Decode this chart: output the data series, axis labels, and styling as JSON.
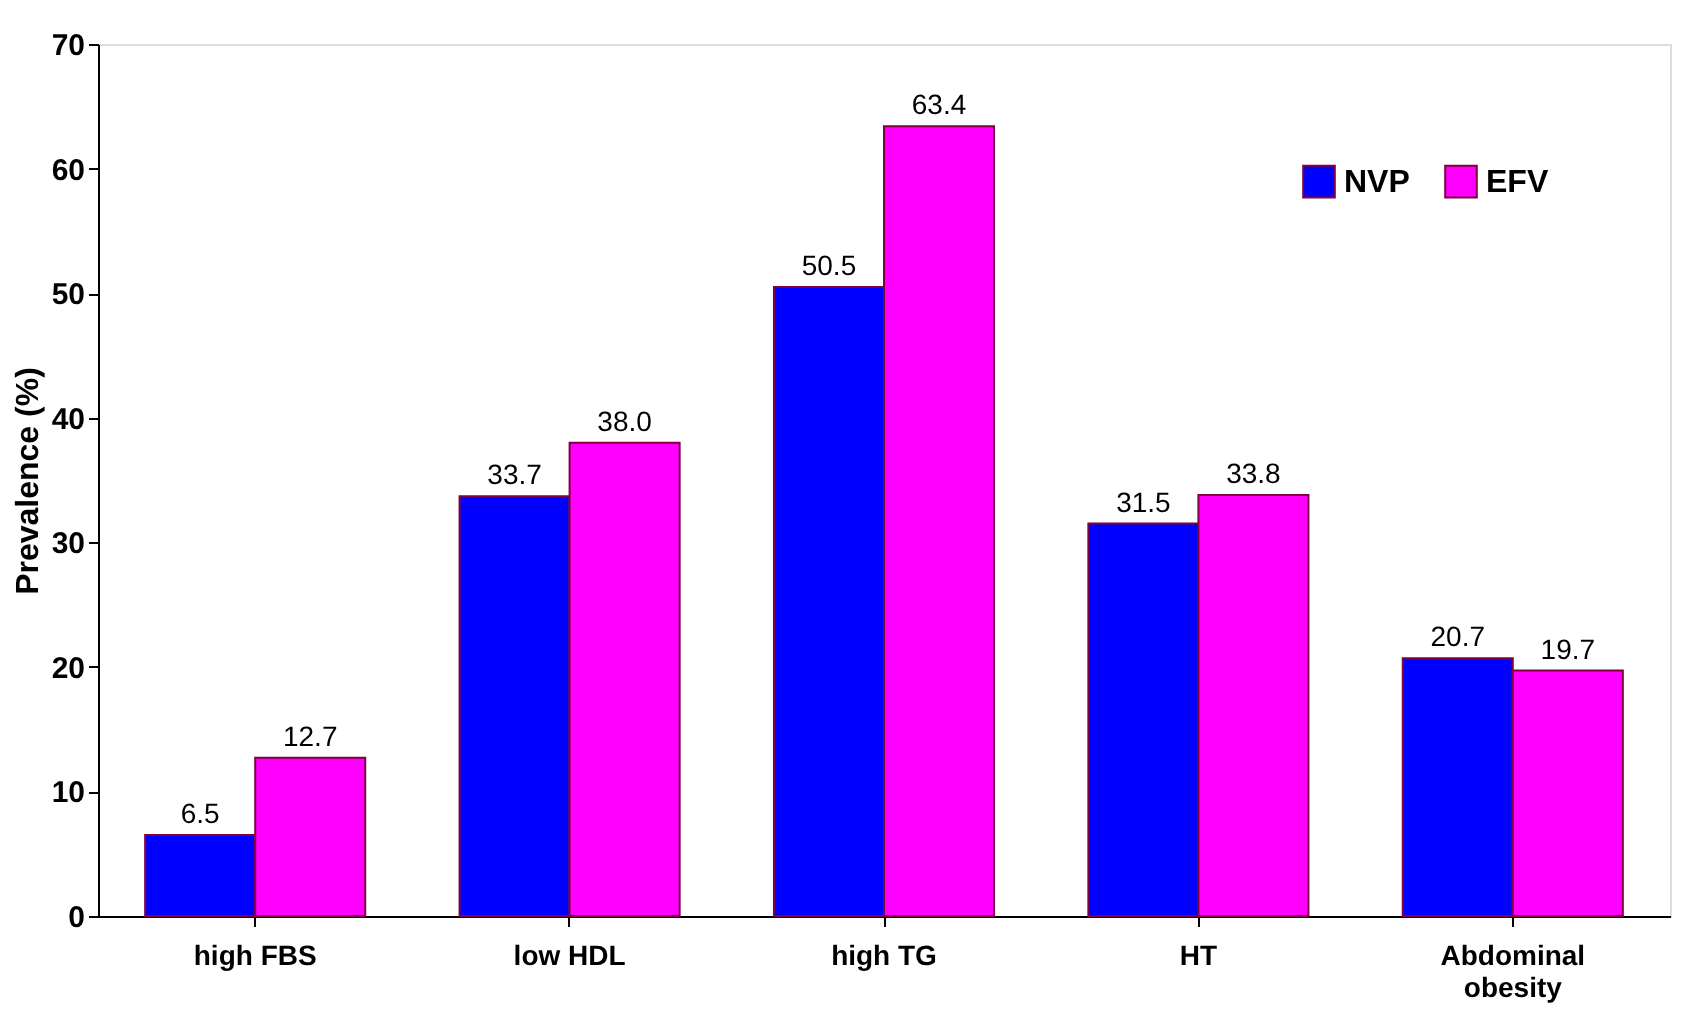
{
  "chart_data": {
    "type": "bar",
    "ylabel": "Prevalence (%)",
    "categories": [
      "high FBS",
      "low HDL",
      "high TG",
      "HT",
      "Abdominal obesity"
    ],
    "series": [
      {
        "name": "NVP",
        "color": "#0000ff",
        "values": [
          6.5,
          33.7,
          50.5,
          31.5,
          20.7
        ],
        "value_labels": [
          "6.5",
          "33.7",
          "50.5",
          "31.5",
          "20.7"
        ]
      },
      {
        "name": "EFV",
        "color": "#ff00ff",
        "values": [
          12.7,
          38.0,
          63.4,
          33.8,
          19.7
        ],
        "value_labels": [
          "12.7",
          "38.0",
          "63.4",
          "33.8",
          "19.7"
        ]
      }
    ],
    "ylim": [
      0,
      70
    ],
    "yticks": [
      0,
      10,
      20,
      30,
      40,
      50,
      60,
      70
    ],
    "grid": false,
    "legend": "top right"
  }
}
